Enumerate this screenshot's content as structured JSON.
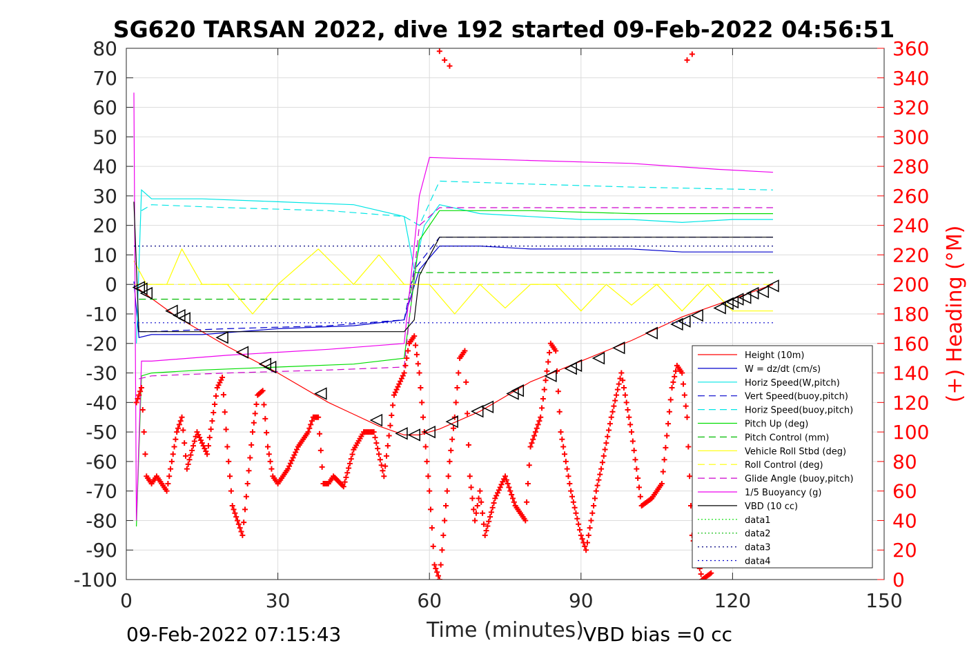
{
  "colors": {
    "height": "#ff0000",
    "w": "#0000cc",
    "horiz_w": "#00e5e5",
    "vert_buoy": "#0000cc",
    "horiz_buoy": "#00e5e5",
    "pitch_up": "#00dd00",
    "pitch_control": "#00bb00",
    "roll": "#ffff00",
    "roll_control": "#ffff00",
    "glide_angle": "#cc00cc",
    "buoyancy": "#ee00ee",
    "vbd": "#000000",
    "heading": "#ff0000",
    "data3": "#000080",
    "data4": "#0000cc"
  },
  "chart_data": {
    "type": "line",
    "title": "SG620 TARSAN 2022, dive 192 started 09-Feb-2022 04:56:51",
    "xlabel": "Time (minutes)",
    "ylabel": "",
    "y2label": "(+) Heading (°M)",
    "xlim": [
      0,
      150
    ],
    "ylim": [
      -100,
      80
    ],
    "y2lim": [
      0,
      360
    ],
    "xticks": [
      "0",
      "30",
      "60",
      "90",
      "120",
      "150"
    ],
    "yticks": [
      "80",
      "70",
      "60",
      "50",
      "40",
      "30",
      "20",
      "10",
      "0",
      "-10",
      "-20",
      "-30",
      "-40",
      "-50",
      "-60",
      "-70",
      "-80",
      "-90",
      "-100"
    ],
    "y2ticks": [
      "360",
      "340",
      "320",
      "300",
      "280",
      "260",
      "240",
      "220",
      "200",
      "180",
      "160",
      "140",
      "120",
      "100",
      "80",
      "60",
      "40",
      "20",
      "0"
    ],
    "grid": true,
    "legend_position": "bottom-right",
    "legend": [
      "Height (10m)",
      "W = dz/dt (cm/s)",
      "Horiz Speed(W,pitch)",
      "Vert Speed(buoy,pitch)",
      "Horiz Speed(buoy,pitch)",
      "Pitch Up (deg)",
      "Pitch Control (mm)",
      "Vehicle Roll Stbd (deg)",
      "Roll Control (deg)",
      "Glide Angle (buoy,pitch)",
      "1/5 Buoyancy (g)",
      "VBD (10 cc)",
      "data1",
      "data2",
      "data3",
      "data4"
    ],
    "series": [
      {
        "name": "Height (10m)",
        "x": [
          2,
          10,
          20,
          30,
          40,
          50,
          55,
          58,
          62,
          70,
          80,
          90,
          100,
          110,
          120,
          128
        ],
        "y": [
          -1,
          -11,
          -21,
          -30,
          -40,
          -48,
          -51,
          -51,
          -49,
          -43,
          -33,
          -26,
          -19,
          -11,
          -5,
          0
        ]
      },
      {
        "name": "W = dz/dt (cm/s)",
        "x": [
          1.5,
          2.5,
          5,
          15,
          30,
          45,
          55,
          56,
          58,
          62,
          70,
          80,
          90,
          100,
          110,
          120,
          128
        ],
        "y": [
          1,
          -18,
          -17,
          -17,
          -15,
          -14,
          -12,
          -6,
          5,
          13,
          13,
          12,
          12,
          12,
          11,
          11,
          11
        ]
      },
      {
        "name": "Horiz Speed(W,pitch)",
        "x": [
          2,
          3,
          5,
          15,
          30,
          45,
          55,
          57,
          59,
          62,
          70,
          80,
          90,
          100,
          110,
          120,
          128
        ],
        "y": [
          -20,
          32,
          29,
          29,
          28,
          27,
          23,
          5,
          20,
          27,
          24,
          23,
          22,
          22,
          21,
          22,
          22
        ]
      },
      {
        "name": "Vert Speed(buoy,pitch)",
        "x": [
          2.5,
          5,
          20,
          40,
          55,
          57,
          62,
          80,
          100,
          128
        ],
        "y": [
          -16,
          -16,
          -15,
          -14,
          -12,
          5,
          16,
          16,
          16,
          16
        ]
      },
      {
        "name": "Horiz Speed(buoy,pitch)",
        "x": [
          3,
          5,
          20,
          40,
          55,
          58,
          62,
          80,
          100,
          128
        ],
        "y": [
          25,
          27,
          26,
          25,
          23,
          20,
          35,
          34,
          33,
          32
        ]
      },
      {
        "name": "Pitch Up (deg)",
        "x": [
          2,
          3,
          5,
          15,
          30,
          45,
          55,
          58,
          62,
          80,
          100,
          128
        ],
        "y": [
          -82,
          -31,
          -30,
          -29,
          -28,
          -27,
          -25,
          15,
          25,
          25,
          24,
          24
        ]
      },
      {
        "name": "Pitch Control (mm)",
        "x": [
          2.5,
          56,
          57,
          128
        ],
        "y": [
          -5,
          -5,
          4,
          4
        ]
      },
      {
        "name": "Vehicle Roll Stbd (deg)",
        "x": [
          1.5,
          4,
          8,
          11,
          15,
          20,
          25,
          30,
          38,
          45,
          50,
          55,
          60,
          65,
          70,
          75,
          80,
          85,
          90,
          95,
          100,
          105,
          110,
          115,
          120,
          128
        ],
        "y": [
          8,
          0,
          0,
          12,
          0,
          0,
          -10,
          0,
          12,
          0,
          10,
          0,
          0,
          -10,
          0,
          -8,
          0,
          0,
          -9,
          0,
          -7,
          0,
          -9,
          0,
          -9,
          -9
        ]
      },
      {
        "name": "Roll Control (deg)",
        "x": [
          1.5,
          128
        ],
        "y": [
          0,
          0
        ]
      },
      {
        "name": "Glide Angle (buoy,pitch)",
        "x": [
          2.5,
          5,
          20,
          40,
          55,
          58,
          62,
          80,
          100,
          128
        ],
        "y": [
          -32,
          -31,
          -30,
          -29,
          -28,
          20,
          26,
          26,
          26,
          26
        ]
      },
      {
        "name": "1/5 Buoyancy (g)",
        "x": [
          1.5,
          2,
          3,
          5,
          20,
          40,
          55,
          58,
          60,
          80,
          100,
          117,
          128
        ],
        "y": [
          65,
          -80,
          -26,
          -26,
          -24,
          -22,
          -20,
          30,
          43,
          42,
          41,
          39,
          38
        ]
      },
      {
        "name": "VBD (10 cc)",
        "x": [
          1.5,
          2.5,
          55,
          57,
          58,
          62,
          80,
          100,
          128
        ],
        "y": [
          28,
          -16,
          -16,
          -12,
          3,
          16,
          16,
          16,
          16
        ]
      },
      {
        "name": "data1",
        "x": [],
        "y": []
      },
      {
        "name": "data2",
        "x": [],
        "y": []
      },
      {
        "name": "data3",
        "x": [
          1.5,
          128
        ],
        "y": [
          13,
          13
        ]
      },
      {
        "name": "data4",
        "x": [
          1.5,
          128
        ],
        "y": [
          -13,
          -13
        ]
      }
    ],
    "heading_series": {
      "x": [
        2,
        3,
        4,
        5,
        6,
        8,
        10,
        11,
        12,
        14,
        16,
        18,
        19,
        20,
        21,
        22,
        23,
        25,
        26,
        27,
        28,
        29,
        30,
        32,
        34,
        36,
        37,
        38,
        39,
        40,
        41,
        43,
        45,
        47,
        49,
        50,
        51,
        53,
        55,
        56,
        57,
        58,
        59,
        60,
        61,
        62,
        64,
        65,
        66,
        67,
        68,
        69,
        70,
        71,
        73,
        75,
        77,
        79,
        80,
        82,
        84,
        85,
        86,
        88,
        90,
        91,
        92,
        93,
        94,
        96,
        98,
        100,
        102,
        104,
        106,
        108,
        109,
        110,
        111,
        112,
        114,
        116
      ],
      "y": [
        120,
        130,
        70,
        65,
        70,
        60,
        100,
        110,
        75,
        100,
        85,
        130,
        137,
        90,
        50,
        40,
        30,
        100,
        125,
        128,
        90,
        70,
        65,
        75,
        90,
        100,
        110,
        110,
        65,
        65,
        70,
        63,
        88,
        100,
        100,
        85,
        70,
        125,
        140,
        160,
        165,
        140,
        100,
        60,
        10,
        0,
        80,
        110,
        150,
        155,
        70,
        40,
        60,
        30,
        55,
        70,
        50,
        40,
        90,
        110,
        160,
        155,
        100,
        60,
        30,
        20,
        40,
        60,
        75,
        110,
        140,
        100,
        50,
        55,
        65,
        130,
        145,
        140,
        110,
        30,
        0,
        5
      ],
      "wrap_points": {
        "x": [
          62,
          63,
          64,
          111,
          112
        ],
        "y": [
          358,
          352,
          348,
          352,
          356
        ]
      }
    },
    "markers": {
      "x": [
        2.5,
        3,
        4,
        9,
        10.5,
        11.5,
        19,
        23,
        27.5,
        28.5,
        38.5,
        49.5,
        54.5,
        57,
        60,
        64.5,
        69.5,
        71.5,
        76.5,
        77.5,
        84,
        88,
        89,
        93.5,
        97.5,
        104,
        109,
        110.5,
        113,
        117.5,
        119,
        120,
        121,
        122.5,
        124,
        126,
        128
      ],
      "y": [
        -1,
        -1.5,
        -3,
        -9,
        -10.5,
        -11.5,
        -18,
        -23,
        -27,
        -28,
        -37,
        -46,
        -50.5,
        -51,
        -50,
        -46.5,
        -43,
        -41.5,
        -37,
        -36,
        -31,
        -28.5,
        -27.5,
        -25,
        -21.5,
        -16.5,
        -13.5,
        -12.5,
        -10.5,
        -8,
        -6.5,
        -6,
        -5,
        -4.5,
        -3,
        -2.5,
        -0.5
      ]
    }
  },
  "footer": {
    "timestamp": "09-Feb-2022 07:15:43",
    "vbd_bias": "VBD bias =0 cc"
  }
}
